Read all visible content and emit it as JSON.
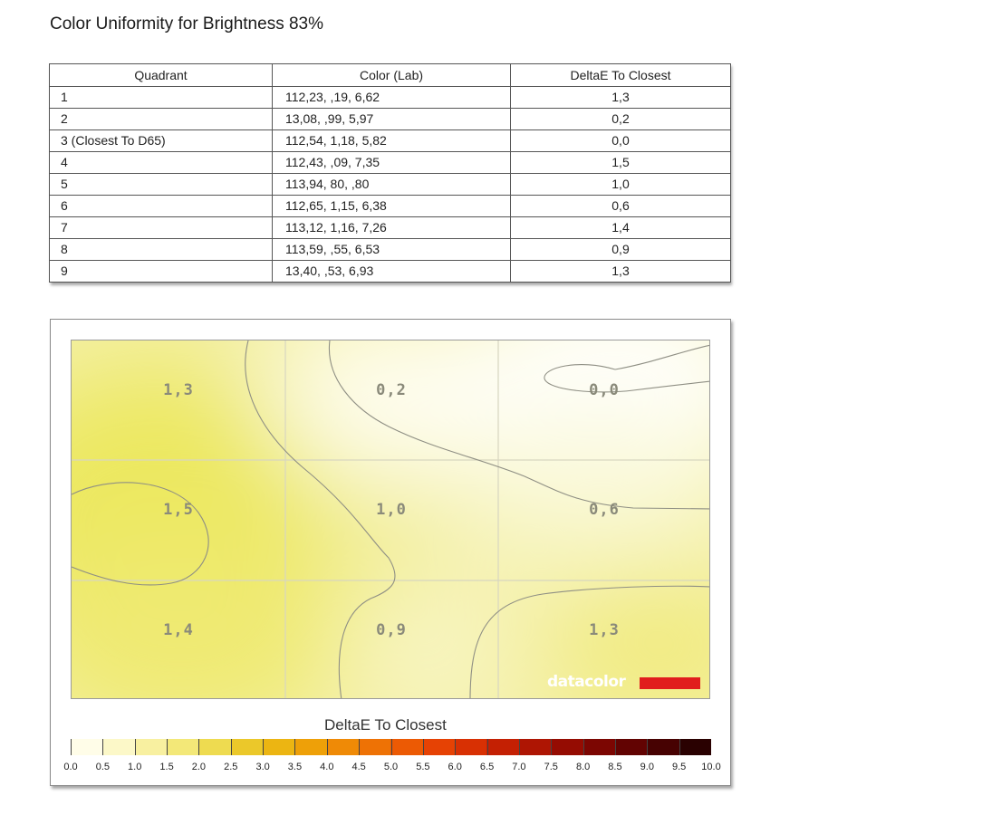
{
  "page": {
    "title": "Color Uniformity for Brightness 83%"
  },
  "table": {
    "headers": [
      "Quadrant",
      "Color (Lab)",
      "DeltaE To Closest"
    ],
    "rows": [
      {
        "quadrant": "1",
        "lab": "112,23,    ,19,  6,62",
        "delta": "1,3"
      },
      {
        "quadrant": "2",
        "lab": " 13,08,    ,99,  5,97",
        "delta": "0,2"
      },
      {
        "quadrant": "3 (Closest To D65)",
        "lab": "112,54,  1,18,  5,82",
        "delta": "0,0"
      },
      {
        "quadrant": "4",
        "lab": "112,43,    ,09,  7,35",
        "delta": "1,5"
      },
      {
        "quadrant": "5",
        "lab": "113,94,     80,    ,80",
        "delta": "1,0"
      },
      {
        "quadrant": "6",
        "lab": "112,65,  1,15,  6,38",
        "delta": "0,6"
      },
      {
        "quadrant": "7",
        "lab": "113,12,  1,16,  7,26",
        "delta": "1,4"
      },
      {
        "quadrant": "8",
        "lab": "113,59,    ,55,  6,53",
        "delta": "0,9"
      },
      {
        "quadrant": "9",
        "lab": " 13,40,    ,53,  6,93",
        "delta": "1,3"
      }
    ]
  },
  "heatmap": {
    "cells": [
      "1,3",
      "0,2",
      "0,0",
      "1,5",
      "1,0",
      "0,6",
      "1,4",
      "0,9",
      "1,3"
    ],
    "brand": "datacolor",
    "brand_color": "#e11d1d"
  },
  "scale": {
    "title": "DeltaE To Closest",
    "labels": [
      "0.0",
      "0.5",
      "1.0",
      "1.5",
      "2.0",
      "2.5",
      "3.0",
      "3.5",
      "4.0",
      "4.5",
      "5.0",
      "5.5",
      "6.0",
      "6.5",
      "7.0",
      "7.5",
      "8.0",
      "8.5",
      "9.0",
      "9.5",
      "10.0"
    ],
    "colors": [
      "#fffde8",
      "#fcf8c8",
      "#f8f0a0",
      "#f3e878",
      "#eedb50",
      "#ebc82a",
      "#ecb512",
      "#eea008",
      "#ef8a06",
      "#ee7205",
      "#ec5a04",
      "#e64204",
      "#d83003",
      "#c42003",
      "#ae1503",
      "#950c02",
      "#7c0602",
      "#620302",
      "#470202",
      "#2a0101"
    ]
  }
}
